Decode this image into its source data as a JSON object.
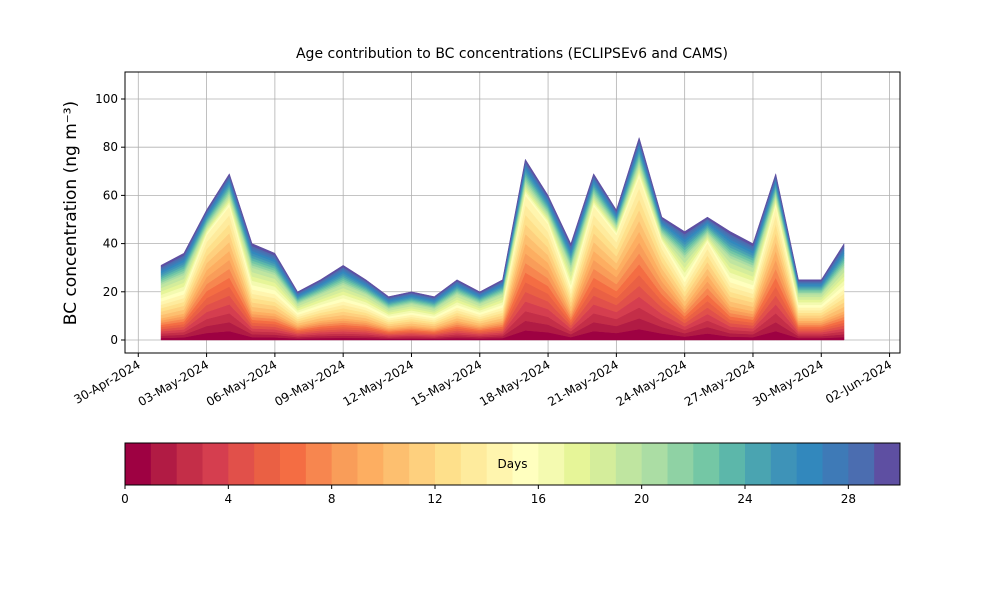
{
  "chart_data": {
    "type": "stacked_area",
    "title": "Age contribution to BC concentrations (ECLIPSEv6 and CAMS)",
    "y_label": "BC concentration (ng m⁻³)",
    "x": [
      "2024-05-01",
      "2024-05-02",
      "2024-05-03",
      "2024-05-04",
      "2024-05-05",
      "2024-05-06",
      "2024-05-07",
      "2024-05-08",
      "2024-05-09",
      "2024-05-10",
      "2024-05-11",
      "2024-05-12",
      "2024-05-13",
      "2024-05-14",
      "2024-05-15",
      "2024-05-16",
      "2024-05-17",
      "2024-05-18",
      "2024-05-19",
      "2024-05-20",
      "2024-05-21",
      "2024-05-22",
      "2024-05-23",
      "2024-05-24",
      "2024-05-25",
      "2024-05-26",
      "2024-05-27",
      "2024-05-28",
      "2024-05-29",
      "2024-05-30",
      "2024-05-31"
    ],
    "xlim": [
      "2024-04-29T10:00:00Z",
      "2024-06-02T11:00:00Z"
    ],
    "xticks": [
      {
        "value": "2024-04-30",
        "label": "30-Apr-2024"
      },
      {
        "value": "2024-05-03",
        "label": "03-May-2024"
      },
      {
        "value": "2024-05-06",
        "label": "06-May-2024"
      },
      {
        "value": "2024-05-09",
        "label": "09-May-2024"
      },
      {
        "value": "2024-05-12",
        "label": "12-May-2024"
      },
      {
        "value": "2024-05-15",
        "label": "15-May-2024"
      },
      {
        "value": "2024-05-18",
        "label": "18-May-2024"
      },
      {
        "value": "2024-05-21",
        "label": "21-May-2024"
      },
      {
        "value": "2024-05-24",
        "label": "24-May-2024"
      },
      {
        "value": "2024-05-27",
        "label": "27-May-2024"
      },
      {
        "value": "2024-05-30",
        "label": "30-May-2024"
      },
      {
        "value": "2024-06-02",
        "label": "02-Jun-2024"
      }
    ],
    "ylim": [
      -5.4,
      111.2
    ],
    "yticks": [
      0,
      20,
      40,
      60,
      80,
      100
    ],
    "grid": true,
    "colorbar": {
      "label": "Days",
      "lim": [
        0,
        30
      ],
      "ticks": [
        0,
        4,
        8,
        12,
        16,
        20,
        24,
        28
      ]
    },
    "series": [
      {
        "color": "#9e0142",
        "values": [
          0.9,
          1.1,
          2.9,
          3.7,
          1.2,
          1.1,
          0.6,
          0.8,
          0.9,
          0.8,
          0.5,
          0.6,
          0.5,
          0.8,
          0.6,
          0.8,
          4.0,
          3.2,
          1.2,
          3.7,
          2.9,
          4.5,
          2.7,
          1.4,
          2.7,
          1.4,
          1.2,
          3.7,
          0.8,
          0.8,
          1.2
        ]
      },
      {
        "color": "#b11b44",
        "values": [
          0.9,
          1.1,
          2.9,
          3.7,
          1.2,
          1.1,
          0.6,
          0.8,
          0.9,
          0.8,
          0.5,
          0.6,
          0.5,
          0.8,
          0.6,
          0.8,
          4.0,
          3.2,
          1.2,
          3.7,
          2.9,
          4.5,
          2.7,
          1.4,
          2.7,
          1.4,
          1.2,
          3.7,
          0.8,
          0.8,
          1.2
        ]
      },
      {
        "color": "#c42e48",
        "values": [
          0.9,
          1.1,
          2.9,
          3.7,
          1.2,
          1.1,
          0.6,
          0.8,
          0.9,
          0.8,
          0.5,
          0.6,
          0.5,
          0.8,
          0.6,
          0.8,
          4.0,
          3.2,
          1.2,
          3.7,
          2.9,
          4.5,
          2.7,
          1.4,
          2.7,
          1.4,
          1.2,
          3.7,
          0.8,
          0.8,
          1.2
        ]
      },
      {
        "color": "#d53e4f",
        "values": [
          0.9,
          1.1,
          2.9,
          3.7,
          1.2,
          1.1,
          0.6,
          0.8,
          0.9,
          0.8,
          0.5,
          0.6,
          0.5,
          0.8,
          0.6,
          0.8,
          4.0,
          3.2,
          1.2,
          3.7,
          2.9,
          4.5,
          2.7,
          1.4,
          2.7,
          1.4,
          1.2,
          3.7,
          0.8,
          0.8,
          1.2
        ]
      },
      {
        "color": "#e1504a",
        "values": [
          0.9,
          1.1,
          2.9,
          3.7,
          1.2,
          1.1,
          0.6,
          0.8,
          0.9,
          0.8,
          0.5,
          0.6,
          0.5,
          0.8,
          0.6,
          0.8,
          4.0,
          3.2,
          1.2,
          3.7,
          2.9,
          4.5,
          2.7,
          1.4,
          2.7,
          1.4,
          1.2,
          3.7,
          0.8,
          0.8,
          1.2
        ]
      },
      {
        "color": "#ea6044",
        "values": [
          0.9,
          1.1,
          2.9,
          3.7,
          1.2,
          1.1,
          0.6,
          0.8,
          0.9,
          0.8,
          0.5,
          0.6,
          0.5,
          0.8,
          0.6,
          0.8,
          4.0,
          3.2,
          1.2,
          3.7,
          2.9,
          4.5,
          2.7,
          1.4,
          2.7,
          1.4,
          1.2,
          3.7,
          0.8,
          0.8,
          1.2
        ]
      },
      {
        "color": "#f46d43",
        "values": [
          0.9,
          1.1,
          2.9,
          3.7,
          1.2,
          1.1,
          0.6,
          0.8,
          0.9,
          0.8,
          0.5,
          0.6,
          0.5,
          0.8,
          0.6,
          0.8,
          4.0,
          3.2,
          1.2,
          3.7,
          2.9,
          4.5,
          2.7,
          1.4,
          2.7,
          1.4,
          1.2,
          3.7,
          0.8,
          0.8,
          1.2
        ]
      },
      {
        "color": "#f7864f",
        "values": [
          0.9,
          1.1,
          2.9,
          3.7,
          1.2,
          1.1,
          0.6,
          0.8,
          0.9,
          0.8,
          0.5,
          0.6,
          0.5,
          0.8,
          0.6,
          0.8,
          4.0,
          3.2,
          1.2,
          3.7,
          2.9,
          4.5,
          2.7,
          1.4,
          2.7,
          1.4,
          1.2,
          3.7,
          0.8,
          0.8,
          1.2
        ]
      },
      {
        "color": "#f99d59",
        "values": [
          0.9,
          1.1,
          2.9,
          3.7,
          1.2,
          1.1,
          0.6,
          0.8,
          0.9,
          0.8,
          0.5,
          0.6,
          0.5,
          0.8,
          0.6,
          0.8,
          4.0,
          3.2,
          1.2,
          3.7,
          2.9,
          4.5,
          2.7,
          1.4,
          2.7,
          1.4,
          1.2,
          3.7,
          0.8,
          0.8,
          1.2
        ]
      },
      {
        "color": "#fdae61",
        "values": [
          0.9,
          1.1,
          2.9,
          3.7,
          1.2,
          1.1,
          0.6,
          0.8,
          0.9,
          0.8,
          0.5,
          0.6,
          0.5,
          0.8,
          0.6,
          0.8,
          4.0,
          3.2,
          1.2,
          3.7,
          2.9,
          4.5,
          2.7,
          1.4,
          2.7,
          1.4,
          1.2,
          3.7,
          0.8,
          0.8,
          1.2
        ]
      },
      {
        "color": "#fdbf6f",
        "values": [
          1.4,
          1.6,
          2.9,
          3.7,
          1.8,
          1.6,
          0.9,
          1.1,
          1.4,
          1.1,
          0.8,
          0.9,
          0.8,
          1.1,
          0.9,
          1.1,
          4.0,
          3.2,
          1.8,
          3.7,
          2.9,
          4.5,
          2.7,
          2.0,
          2.7,
          2.0,
          1.8,
          3.7,
          1.1,
          1.1,
          1.8
        ]
      },
      {
        "color": "#fed07e",
        "values": [
          1.4,
          1.6,
          2.9,
          3.7,
          1.8,
          1.6,
          0.9,
          1.1,
          1.4,
          1.1,
          0.8,
          0.9,
          0.8,
          1.1,
          0.9,
          1.1,
          4.0,
          3.2,
          1.8,
          3.7,
          2.9,
          4.5,
          2.7,
          2.0,
          2.7,
          2.0,
          1.8,
          3.7,
          1.1,
          1.1,
          1.8
        ]
      },
      {
        "color": "#fee08b",
        "values": [
          1.4,
          1.6,
          2.9,
          3.7,
          1.8,
          1.6,
          0.9,
          1.1,
          1.4,
          1.1,
          0.8,
          0.9,
          0.8,
          1.1,
          0.9,
          1.1,
          4.0,
          3.2,
          1.8,
          3.7,
          2.9,
          4.5,
          2.7,
          2.0,
          2.7,
          2.0,
          1.8,
          3.7,
          1.1,
          1.1,
          1.8
        ]
      },
      {
        "color": "#feeb9d",
        "values": [
          1.4,
          1.6,
          2.9,
          3.7,
          1.8,
          1.6,
          0.9,
          1.1,
          1.4,
          1.1,
          0.8,
          0.9,
          0.8,
          1.1,
          0.9,
          1.1,
          4.0,
          3.2,
          1.8,
          3.7,
          2.9,
          4.5,
          2.7,
          2.0,
          2.7,
          2.0,
          1.8,
          3.7,
          1.1,
          1.1,
          1.8
        ]
      },
      {
        "color": "#fff5ae",
        "values": [
          1.4,
          1.6,
          2.9,
          3.7,
          1.8,
          1.6,
          0.9,
          1.1,
          1.4,
          1.1,
          0.8,
          0.9,
          0.8,
          1.1,
          0.9,
          1.1,
          4.0,
          3.2,
          1.8,
          3.7,
          2.9,
          4.5,
          2.7,
          2.0,
          2.7,
          2.0,
          1.8,
          3.7,
          1.1,
          1.1,
          1.8
        ]
      },
      {
        "color": "#ffffbf",
        "values": [
          1.4,
          1.6,
          0.7,
          0.9,
          1.8,
          1.6,
          0.9,
          1.1,
          1.4,
          1.1,
          0.8,
          0.9,
          0.8,
          1.1,
          0.9,
          1.1,
          1.0,
          0.8,
          1.8,
          0.9,
          0.7,
          1.1,
          0.7,
          2.0,
          0.7,
          2.0,
          1.8,
          0.9,
          1.1,
          1.1,
          1.8
        ]
      },
      {
        "color": "#f4fab0",
        "values": [
          1.4,
          1.6,
          0.7,
          0.9,
          1.8,
          1.6,
          0.9,
          1.1,
          1.4,
          1.1,
          0.8,
          0.9,
          0.8,
          1.1,
          0.9,
          1.1,
          1.0,
          0.8,
          1.8,
          0.9,
          0.7,
          1.1,
          0.7,
          2.0,
          0.7,
          2.0,
          1.8,
          0.9,
          1.1,
          1.1,
          1.8
        ]
      },
      {
        "color": "#e6f598",
        "values": [
          1.4,
          1.6,
          0.7,
          0.9,
          1.8,
          1.6,
          0.9,
          1.1,
          1.4,
          1.1,
          0.8,
          0.9,
          0.8,
          1.1,
          0.9,
          1.1,
          1.0,
          0.8,
          1.8,
          0.9,
          0.7,
          1.1,
          0.7,
          2.0,
          0.7,
          2.0,
          1.8,
          0.9,
          1.1,
          1.1,
          1.8
        ]
      },
      {
        "color": "#d4ed9b",
        "values": [
          1.4,
          1.6,
          0.7,
          0.9,
          1.8,
          1.6,
          0.9,
          1.1,
          1.4,
          1.1,
          0.8,
          0.9,
          0.8,
          1.1,
          0.9,
          1.1,
          1.0,
          0.8,
          1.8,
          0.9,
          0.7,
          1.1,
          0.7,
          2.0,
          0.7,
          2.0,
          1.8,
          0.9,
          1.1,
          1.1,
          1.8
        ]
      },
      {
        "color": "#bfe5a0",
        "values": [
          1.4,
          1.6,
          0.7,
          0.9,
          1.8,
          1.6,
          0.9,
          1.1,
          1.4,
          1.1,
          0.8,
          0.9,
          0.8,
          1.1,
          0.9,
          1.1,
          1.0,
          0.8,
          1.8,
          0.9,
          0.7,
          1.1,
          0.7,
          2.0,
          0.7,
          2.0,
          1.8,
          0.9,
          1.1,
          1.1,
          1.8
        ]
      },
      {
        "color": "#abdda4",
        "values": [
          0.8,
          0.9,
          0.7,
          0.9,
          1.0,
          0.9,
          0.5,
          0.6,
          0.8,
          0.6,
          0.5,
          0.5,
          0.5,
          0.6,
          0.5,
          0.6,
          1.0,
          0.8,
          1.0,
          0.9,
          0.7,
          1.1,
          0.7,
          1.1,
          0.7,
          1.1,
          1.0,
          0.9,
          0.6,
          0.6,
          1.0
        ]
      },
      {
        "color": "#8fd2a4",
        "values": [
          0.8,
          0.9,
          0.7,
          0.9,
          1.0,
          0.9,
          0.5,
          0.6,
          0.8,
          0.6,
          0.5,
          0.5,
          0.5,
          0.6,
          0.5,
          0.6,
          1.0,
          0.8,
          1.0,
          0.9,
          0.7,
          1.1,
          0.7,
          1.1,
          0.7,
          1.1,
          1.0,
          0.9,
          0.6,
          0.6,
          1.0
        ]
      },
      {
        "color": "#74c7a5",
        "values": [
          0.8,
          0.9,
          0.7,
          0.9,
          1.0,
          0.9,
          0.5,
          0.6,
          0.8,
          0.6,
          0.5,
          0.5,
          0.5,
          0.6,
          0.5,
          0.6,
          1.0,
          0.8,
          1.0,
          0.9,
          0.7,
          1.1,
          0.7,
          1.1,
          0.7,
          1.1,
          1.0,
          0.9,
          0.6,
          0.6,
          1.0
        ]
      },
      {
        "color": "#5cb7aa",
        "values": [
          0.8,
          0.9,
          0.7,
          0.9,
          1.0,
          0.9,
          0.5,
          0.6,
          0.8,
          0.6,
          0.5,
          0.5,
          0.5,
          0.6,
          0.5,
          0.6,
          1.0,
          0.8,
          1.0,
          0.9,
          0.7,
          1.1,
          0.7,
          1.1,
          0.7,
          1.1,
          1.0,
          0.9,
          0.6,
          0.6,
          1.0
        ]
      },
      {
        "color": "#4aa4b1",
        "values": [
          0.8,
          0.9,
          0.7,
          0.9,
          1.0,
          0.9,
          0.5,
          0.6,
          0.8,
          0.6,
          0.5,
          0.5,
          0.5,
          0.6,
          0.5,
          0.6,
          1.0,
          0.8,
          1.0,
          0.9,
          0.7,
          1.1,
          0.7,
          1.1,
          0.7,
          1.1,
          1.0,
          0.9,
          0.6,
          0.6,
          1.0
        ]
      },
      {
        "color": "#3e93b8",
        "values": [
          0.8,
          0.9,
          0.7,
          0.9,
          1.0,
          0.9,
          0.5,
          0.6,
          0.8,
          0.6,
          0.5,
          0.5,
          0.5,
          0.6,
          0.5,
          0.6,
          1.0,
          0.8,
          1.0,
          0.9,
          0.7,
          1.1,
          0.7,
          1.1,
          0.7,
          1.1,
          1.0,
          0.9,
          0.6,
          0.6,
          1.0
        ]
      },
      {
        "color": "#3288bd",
        "values": [
          0.8,
          0.9,
          0.7,
          0.9,
          1.0,
          0.9,
          0.5,
          0.6,
          0.8,
          0.6,
          0.5,
          0.5,
          0.5,
          0.6,
          0.5,
          0.6,
          1.0,
          0.8,
          1.0,
          0.9,
          0.7,
          1.1,
          0.7,
          1.1,
          0.7,
          1.1,
          1.0,
          0.9,
          0.6,
          0.6,
          1.0
        ]
      },
      {
        "color": "#3e7ab7",
        "values": [
          0.8,
          0.9,
          0.7,
          0.9,
          1.0,
          0.9,
          0.5,
          0.6,
          0.8,
          0.6,
          0.5,
          0.5,
          0.5,
          0.6,
          0.5,
          0.6,
          1.0,
          0.8,
          1.0,
          0.9,
          0.7,
          1.1,
          0.7,
          1.1,
          0.7,
          1.1,
          1.0,
          0.9,
          0.6,
          0.6,
          1.0
        ]
      },
      {
        "color": "#4b6db0",
        "values": [
          0.8,
          0.9,
          0.7,
          0.9,
          1.0,
          0.9,
          0.5,
          0.6,
          0.8,
          0.6,
          0.5,
          0.5,
          0.5,
          0.6,
          0.5,
          0.6,
          1.0,
          0.8,
          1.0,
          0.9,
          0.7,
          1.1,
          0.7,
          1.1,
          0.7,
          1.1,
          1.0,
          0.9,
          0.6,
          0.6,
          1.0
        ]
      },
      {
        "color": "#5e4fa2",
        "values": [
          0.8,
          0.9,
          0.7,
          0.9,
          1.0,
          0.9,
          0.5,
          0.6,
          0.8,
          0.6,
          0.5,
          0.5,
          0.5,
          0.6,
          0.5,
          0.6,
          1.0,
          0.8,
          1.0,
          0.9,
          0.7,
          1.1,
          0.7,
          1.1,
          0.7,
          1.1,
          1.0,
          0.9,
          0.6,
          0.6,
          1.0
        ]
      }
    ]
  }
}
